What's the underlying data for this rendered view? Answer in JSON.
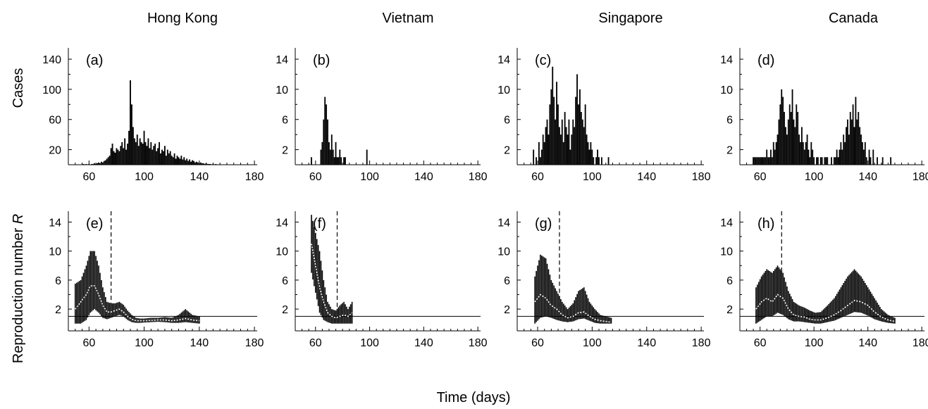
{
  "figure": {
    "column_titles": [
      "Hong Kong",
      "Vietnam",
      "Singapore",
      "Canada"
    ],
    "row_labels": {
      "cases": "Cases",
      "reproduction_prefix": "Reproduction number ",
      "reproduction_symbol": "R"
    },
    "xlabel": "Time (days)"
  },
  "chart_data": [
    {
      "type": "bar",
      "panel": "(a)",
      "country": "Hong Kong",
      "row": "cases",
      "xlim": [
        45,
        182
      ],
      "ylim": [
        0,
        155
      ],
      "xticks": [
        60,
        100,
        140,
        180
      ],
      "yticks": [
        20,
        60,
        100,
        140
      ],
      "x_start": 56,
      "values": [
        1,
        0,
        1,
        0,
        1,
        0,
        1,
        1,
        2,
        1,
        2,
        3,
        2,
        4,
        3,
        5,
        6,
        8,
        10,
        12,
        22,
        28,
        18,
        16,
        22,
        20,
        18,
        25,
        30,
        22,
        35,
        20,
        28,
        45,
        112,
        80,
        50,
        35,
        30,
        40,
        25,
        35,
        30,
        28,
        45,
        30,
        25,
        35,
        22,
        30,
        20,
        25,
        28,
        18,
        22,
        30,
        15,
        20,
        18,
        25,
        12,
        20,
        15,
        18,
        12,
        10,
        15,
        8,
        12,
        10,
        8,
        12,
        7,
        10,
        6,
        8,
        5,
        7,
        4,
        6,
        5,
        3,
        4,
        3,
        2,
        3,
        2,
        2,
        1,
        2,
        1,
        1,
        1,
        0,
        1,
        0,
        1
      ]
    },
    {
      "type": "bar",
      "panel": "(b)",
      "country": "Vietnam",
      "row": "cases",
      "xlim": [
        45,
        182
      ],
      "ylim": [
        0,
        15.5
      ],
      "xticks": [
        60,
        100,
        140,
        180
      ],
      "yticks": [
        2,
        6,
        10,
        14
      ],
      "x_start": 57,
      "values": [
        1,
        0,
        0,
        0,
        0,
        0,
        0,
        2,
        3,
        6,
        9,
        8,
        6,
        3,
        2,
        4,
        2,
        1,
        3,
        1,
        1,
        2,
        1,
        0,
        1,
        1,
        0,
        0,
        0,
        0,
        0,
        0,
        0,
        0,
        0,
        0,
        0,
        0,
        0,
        0,
        0,
        2
      ]
    },
    {
      "type": "bar",
      "panel": "(c)",
      "country": "Singapore",
      "row": "cases",
      "xlim": [
        45,
        182
      ],
      "ylim": [
        0,
        15.5
      ],
      "xticks": [
        60,
        100,
        140,
        180
      ],
      "yticks": [
        2,
        6,
        10,
        14
      ],
      "x_start": 57,
      "values": [
        2,
        0,
        1,
        0,
        3,
        1,
        2,
        4,
        3,
        5,
        6,
        4,
        8,
        10,
        13,
        9,
        6,
        11,
        8,
        5,
        4,
        6,
        3,
        7,
        5,
        4,
        6,
        2,
        4,
        6,
        5,
        9,
        12,
        8,
        10,
        7,
        6,
        5,
        8,
        4,
        3,
        2,
        3,
        2,
        1,
        0,
        1,
        2,
        1,
        0,
        1,
        0,
        0,
        0,
        0,
        1
      ]
    },
    {
      "type": "bar",
      "panel": "(d)",
      "country": "Canada",
      "row": "cases",
      "xlim": [
        45,
        182
      ],
      "ylim": [
        0,
        15.5
      ],
      "xticks": [
        60,
        100,
        140,
        180
      ],
      "yticks": [
        2,
        6,
        10,
        14
      ],
      "x_start": 55,
      "values": [
        1,
        1,
        1,
        1,
        1,
        1,
        1,
        1,
        1,
        1,
        2,
        1,
        1,
        2,
        1,
        3,
        2,
        3,
        4,
        6,
        8,
        10,
        9,
        7,
        5,
        4,
        6,
        8,
        7,
        10,
        6,
        5,
        8,
        7,
        4,
        3,
        5,
        3,
        2,
        3,
        4,
        2,
        1,
        3,
        2,
        1,
        0,
        1,
        1,
        0,
        1,
        1,
        0,
        1,
        1,
        1,
        0,
        0,
        1,
        0,
        1,
        1,
        2,
        1,
        2,
        3,
        2,
        4,
        3,
        5,
        6,
        4,
        7,
        6,
        8,
        5,
        9,
        6,
        7,
        5,
        4,
        3,
        2,
        3,
        1,
        0,
        2,
        1,
        0,
        2,
        0,
        0,
        1,
        0,
        0,
        0,
        1,
        0,
        0,
        0,
        0,
        0,
        1
      ]
    },
    {
      "type": "area",
      "panel": "(e)",
      "country": "Hong Kong",
      "row": "reproduction",
      "xlim": [
        45,
        182
      ],
      "ylim": [
        -1,
        15.5
      ],
      "xticks": [
        60,
        100,
        140,
        180
      ],
      "yticks": [
        2,
        6,
        10,
        14
      ],
      "threshold": 1,
      "intervention_day": 76,
      "x": [
        50,
        54,
        58,
        61,
        64,
        67,
        70,
        73,
        76,
        79,
        82,
        85,
        88,
        91,
        94,
        97,
        100,
        105,
        110,
        115,
        120,
        125,
        130,
        135,
        140
      ],
      "median": [
        2,
        3,
        4,
        5.2,
        5.2,
        4,
        2.5,
        1.6,
        1.6,
        1.8,
        2,
        1.6,
        1,
        0.6,
        0.4,
        0.4,
        0.4,
        0.45,
        0.5,
        0.5,
        0.4,
        0.5,
        0.7,
        0.5,
        0.4
      ],
      "lower": [
        0,
        0,
        0.5,
        1.5,
        2,
        1.5,
        0.8,
        0.6,
        0.8,
        1,
        1.2,
        1,
        0.5,
        0.2,
        0.1,
        0.1,
        0.15,
        0.2,
        0.25,
        0.2,
        0.1,
        0.1,
        0.2,
        0.1,
        0
      ],
      "upper": [
        5.5,
        6,
        8,
        10,
        10,
        8,
        5,
        3,
        2.8,
        2.8,
        3,
        2.6,
        1.8,
        1.2,
        0.8,
        0.7,
        0.7,
        0.8,
        0.8,
        0.9,
        0.8,
        1.2,
        2,
        1.2,
        1
      ]
    },
    {
      "type": "area",
      "panel": "(f)",
      "country": "Vietnam",
      "row": "reproduction",
      "xlim": [
        45,
        182
      ],
      "ylim": [
        -1,
        15.5
      ],
      "xticks": [
        60,
        100,
        140,
        180
      ],
      "yticks": [
        2,
        6,
        10,
        14
      ],
      "threshold": 1,
      "intervention_day": 76,
      "x": [
        57,
        63,
        66,
        69,
        72,
        75,
        78,
        81,
        84,
        87
      ],
      "median": [
        11,
        5,
        3,
        1.5,
        1,
        0.8,
        1,
        1.2,
        1,
        1.5
      ],
      "lower": [
        7,
        1.5,
        0.5,
        0.2,
        0,
        0,
        0,
        0,
        0,
        0
      ],
      "upper": [
        15,
        10,
        6,
        3,
        2,
        1.8,
        2.5,
        3,
        2,
        3
      ]
    },
    {
      "type": "area",
      "panel": "(g)",
      "country": "Singapore",
      "row": "reproduction",
      "xlim": [
        45,
        182
      ],
      "ylim": [
        -1,
        15.5
      ],
      "xticks": [
        60,
        100,
        140,
        180
      ],
      "yticks": [
        2,
        6,
        10,
        14
      ],
      "threshold": 1,
      "intervention_day": 76,
      "x": [
        58,
        62,
        66,
        70,
        74,
        78,
        82,
        86,
        90,
        94,
        98,
        102,
        106,
        110,
        114
      ],
      "median": [
        3,
        4,
        3.5,
        2.5,
        2,
        1.2,
        0.8,
        1,
        1.5,
        1.6,
        1,
        0.6,
        0.4,
        0.3,
        0.2
      ],
      "lower": [
        0,
        0.8,
        1,
        0.8,
        0.5,
        0.3,
        0.2,
        0.3,
        0.6,
        0.7,
        0.4,
        0.1,
        0,
        0,
        0
      ],
      "upper": [
        6.5,
        9.5,
        9,
        6,
        4.5,
        3,
        2,
        2.8,
        4.5,
        5,
        3,
        2,
        1.2,
        1,
        0.8
      ]
    },
    {
      "type": "area",
      "panel": "(h)",
      "country": "Canada",
      "row": "reproduction",
      "xlim": [
        45,
        182
      ],
      "ylim": [
        -1,
        15.5
      ],
      "xticks": [
        60,
        100,
        140,
        180
      ],
      "yticks": [
        2,
        6,
        10,
        14
      ],
      "threshold": 1,
      "intervention_day": 76,
      "x": [
        57,
        61,
        65,
        69,
        73,
        77,
        81,
        85,
        89,
        93,
        97,
        101,
        105,
        110,
        115,
        120,
        125,
        130,
        135,
        140,
        145,
        150,
        155,
        160
      ],
      "median": [
        2,
        3,
        3.5,
        3,
        4,
        3.5,
        2,
        1.2,
        1,
        0.9,
        0.6,
        0.5,
        0.5,
        0.8,
        1.2,
        1.8,
        2.5,
        3.2,
        3,
        2.5,
        1.6,
        0.9,
        0.5,
        0.3
      ],
      "lower": [
        0,
        0.5,
        1,
        1,
        1.5,
        1.2,
        0.6,
        0.3,
        0.3,
        0.2,
        0.1,
        0,
        0,
        0.2,
        0.4,
        0.8,
        1.2,
        1.6,
        1.5,
        1.1,
        0.6,
        0.3,
        0.1,
        0
      ],
      "upper": [
        5,
        6.5,
        7.5,
        7,
        8,
        7,
        4.5,
        3,
        2.5,
        2.2,
        1.8,
        1.5,
        1.6,
        2.5,
        3.5,
        5,
        6.5,
        7.5,
        6.5,
        5,
        3.5,
        2,
        1.2,
        0.8
      ]
    }
  ]
}
